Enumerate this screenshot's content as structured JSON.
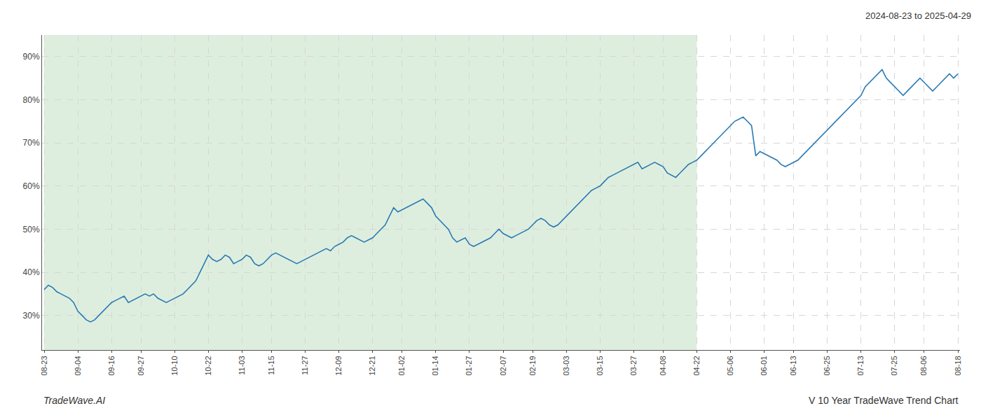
{
  "chart_data": {
    "type": "line",
    "title": "2024-08-23 to 2025-04-29",
    "annotations": [
      "TradeWave.AI",
      "V 10 Year TradeWave Trend Chart"
    ],
    "color": "#2a7ab5",
    "grid": true,
    "ylim": [
      22,
      95
    ],
    "yticks": [
      {
        "value": 30,
        "label": "30%"
      },
      {
        "value": 40,
        "label": "40%"
      },
      {
        "value": 50,
        "label": "50%"
      },
      {
        "value": 60,
        "label": "60%"
      },
      {
        "value": 70,
        "label": "70%"
      },
      {
        "value": 80,
        "label": "80%"
      },
      {
        "value": 90,
        "label": "90%"
      }
    ],
    "highlight": {
      "from": "08-23",
      "to": "04-22",
      "color": "#cce5cc"
    },
    "categories": [
      "08-23",
      null,
      null,
      null,
      null,
      null,
      null,
      null,
      "09-04",
      null,
      null,
      null,
      null,
      null,
      null,
      null,
      "09-16",
      null,
      null,
      null,
      null,
      null,
      null,
      "09-27",
      null,
      null,
      null,
      null,
      null,
      null,
      null,
      "10-10",
      null,
      null,
      null,
      null,
      null,
      null,
      null,
      "10-22",
      null,
      null,
      null,
      null,
      null,
      null,
      null,
      "11-03",
      null,
      null,
      null,
      null,
      null,
      null,
      "11-15",
      null,
      null,
      null,
      null,
      null,
      null,
      null,
      "11-27",
      null,
      null,
      null,
      null,
      null,
      null,
      null,
      "12-09",
      null,
      null,
      null,
      null,
      null,
      null,
      null,
      "12-21",
      null,
      null,
      null,
      null,
      null,
      null,
      "01-02",
      null,
      null,
      null,
      null,
      null,
      null,
      null,
      "01-14",
      null,
      null,
      null,
      null,
      null,
      null,
      null,
      "01-27",
      null,
      null,
      null,
      null,
      null,
      null,
      null,
      "02-07",
      null,
      null,
      null,
      null,
      null,
      null,
      "02-19",
      null,
      null,
      null,
      null,
      null,
      null,
      null,
      "03-03",
      null,
      null,
      null,
      null,
      null,
      null,
      null,
      "03-15",
      null,
      null,
      null,
      null,
      null,
      null,
      null,
      "03-27",
      null,
      null,
      null,
      null,
      null,
      null,
      "04-08",
      null,
      null,
      null,
      null,
      null,
      null,
      null,
      "04-22",
      null,
      null,
      null,
      null,
      null,
      null,
      null,
      "05-06",
      null,
      null,
      null,
      null,
      null,
      null,
      null,
      "06-01",
      null,
      null,
      null,
      null,
      null,
      null,
      "06-13",
      null,
      null,
      null,
      null,
      null,
      null,
      null,
      "06-25",
      null,
      null,
      null,
      null,
      null,
      null,
      null,
      "07-13",
      null,
      null,
      null,
      null,
      null,
      null,
      null,
      "07-25",
      null,
      null,
      null,
      null,
      null,
      null,
      "08-06",
      null,
      null,
      null,
      null,
      null,
      null,
      null,
      "08-18"
    ],
    "values": [
      36.0,
      37.0,
      36.5,
      35.5,
      35.0,
      34.5,
      34.0,
      33.0,
      31.0,
      30.0,
      29.0,
      28.5,
      29.0,
      30.0,
      31.0,
      32.0,
      33.0,
      33.5,
      34.0,
      34.5,
      33.0,
      33.5,
      34.0,
      34.5,
      35.0,
      34.5,
      35.0,
      34.0,
      33.5,
      33.0,
      33.5,
      34.0,
      34.5,
      35.0,
      36.0,
      37.0,
      38.0,
      40.0,
      42.0,
      44.0,
      43.0,
      42.5,
      43.0,
      44.0,
      43.5,
      42.0,
      42.5,
      43.0,
      44.0,
      43.5,
      42.0,
      41.5,
      42.0,
      43.0,
      44.0,
      44.5,
      44.0,
      43.5,
      43.0,
      42.5,
      42.0,
      42.5,
      43.0,
      43.5,
      44.0,
      44.5,
      45.0,
      45.5,
      45.0,
      46.0,
      46.5,
      47.0,
      48.0,
      48.5,
      48.0,
      47.5,
      47.0,
      47.5,
      48.0,
      49.0,
      50.0,
      51.0,
      53.0,
      55.0,
      54.0,
      54.5,
      55.0,
      55.5,
      56.0,
      56.5,
      57.0,
      56.0,
      55.0,
      53.0,
      52.0,
      51.0,
      50.0,
      48.0,
      47.0,
      47.5,
      48.0,
      46.5,
      46.0,
      46.5,
      47.0,
      47.5,
      48.0,
      49.0,
      50.0,
      49.0,
      48.5,
      48.0,
      48.5,
      49.0,
      49.5,
      50.0,
      51.0,
      52.0,
      52.5,
      52.0,
      51.0,
      50.5,
      51.0,
      52.0,
      53.0,
      54.0,
      55.0,
      56.0,
      57.0,
      58.0,
      59.0,
      59.5,
      60.0,
      61.0,
      62.0,
      62.5,
      63.0,
      63.5,
      64.0,
      64.5,
      65.0,
      65.5,
      64.0,
      64.5,
      65.0,
      65.5,
      65.0,
      64.5,
      63.0,
      62.5,
      62.0,
      63.0,
      64.0,
      65.0,
      65.5,
      66.0,
      67.0,
      68.0,
      69.0,
      70.0,
      71.0,
      72.0,
      73.0,
      74.0,
      75.0,
      75.5,
      76.0,
      75.0,
      74.0,
      67.0,
      68.0,
      67.5,
      67.0,
      66.5,
      66.0,
      65.0,
      64.5,
      65.0,
      65.5,
      66.0,
      67.0,
      68.0,
      69.0,
      70.0,
      71.0,
      72.0,
      73.0,
      74.0,
      75.0,
      76.0,
      77.0,
      78.0,
      79.0,
      80.0,
      81.0,
      83.0,
      84.0,
      85.0,
      86.0,
      87.0,
      85.0,
      84.0,
      83.0,
      82.0,
      81.0,
      82.0,
      83.0,
      84.0,
      85.0,
      84.0,
      83.0,
      82.0,
      83.0,
      84.0,
      85.0,
      86.0,
      85.0,
      86.0
    ]
  }
}
